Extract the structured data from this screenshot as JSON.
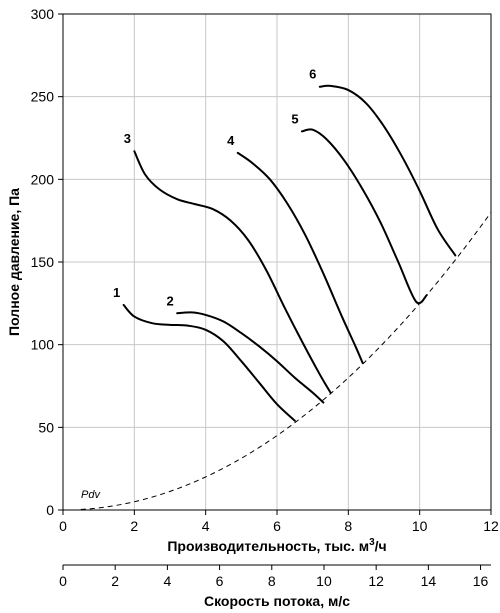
{
  "chart_data": {
    "type": "line",
    "xlabel_main": "Производительность, тыс. м",
    "xlabel_sup": "3",
    "xlabel_tail": "/ч",
    "ylabel": "Полное давление, Па",
    "x2label": "Скорость потока, м/с",
    "xlim": [
      0,
      12
    ],
    "ylim": [
      0,
      300
    ],
    "x2lim": [
      0,
      16.4
    ],
    "xticks": [
      0,
      2,
      4,
      6,
      8,
      10,
      12
    ],
    "yticks": [
      0,
      50,
      100,
      150,
      200,
      250,
      300
    ],
    "x2ticks": [
      0,
      2,
      4,
      6,
      8,
      10,
      12,
      14,
      16
    ],
    "grid": true,
    "series": [
      {
        "name": "1",
        "x": [
          1.7,
          2.0,
          2.5,
          3.0,
          3.5,
          4.0,
          4.5,
          5.0,
          5.5,
          6.0,
          6.5
        ],
        "y": [
          124,
          117,
          113,
          112,
          111.5,
          109,
          102,
          90,
          77,
          64,
          54
        ]
      },
      {
        "name": "2",
        "x": [
          3.2,
          3.6,
          4.0,
          4.5,
          5.0,
          5.5,
          6.0,
          6.5,
          7.0,
          7.3
        ],
        "y": [
          119,
          119.5,
          118,
          114,
          107,
          99,
          90,
          80,
          71,
          65
        ]
      },
      {
        "name": "3",
        "x": [
          2.0,
          2.3,
          2.7,
          3.2,
          3.7,
          4.2,
          4.7,
          5.2,
          5.7,
          6.2,
          6.7,
          7.2,
          7.5
        ],
        "y": [
          217,
          203,
          194,
          188,
          185,
          182,
          175,
          163,
          145,
          123,
          102,
          82,
          71
        ]
      },
      {
        "name": "4",
        "x": [
          4.9,
          5.3,
          5.8,
          6.3,
          6.8,
          7.3,
          7.8,
          8.2,
          8.4
        ],
        "y": [
          216,
          210,
          200,
          185,
          166,
          143,
          118,
          99,
          89
        ]
      },
      {
        "name": "5",
        "x": [
          6.7,
          7.0,
          7.4,
          7.9,
          8.4,
          8.9,
          9.4,
          9.9,
          10.2
        ],
        "y": [
          229,
          230,
          224,
          211,
          194,
          174,
          150,
          126,
          130
        ]
      },
      {
        "name": "6",
        "x": [
          7.2,
          7.5,
          8.0,
          8.5,
          9.0,
          9.5,
          10.0,
          10.5,
          11.0
        ],
        "y": [
          256,
          256.5,
          254,
          246,
          232,
          214,
          193,
          170,
          154
        ]
      }
    ],
    "pdv_curve": {
      "name": "Pdv",
      "coef": 1.25,
      "x_start": 0.5,
      "x_end": 12.0,
      "style": "dashed"
    }
  }
}
